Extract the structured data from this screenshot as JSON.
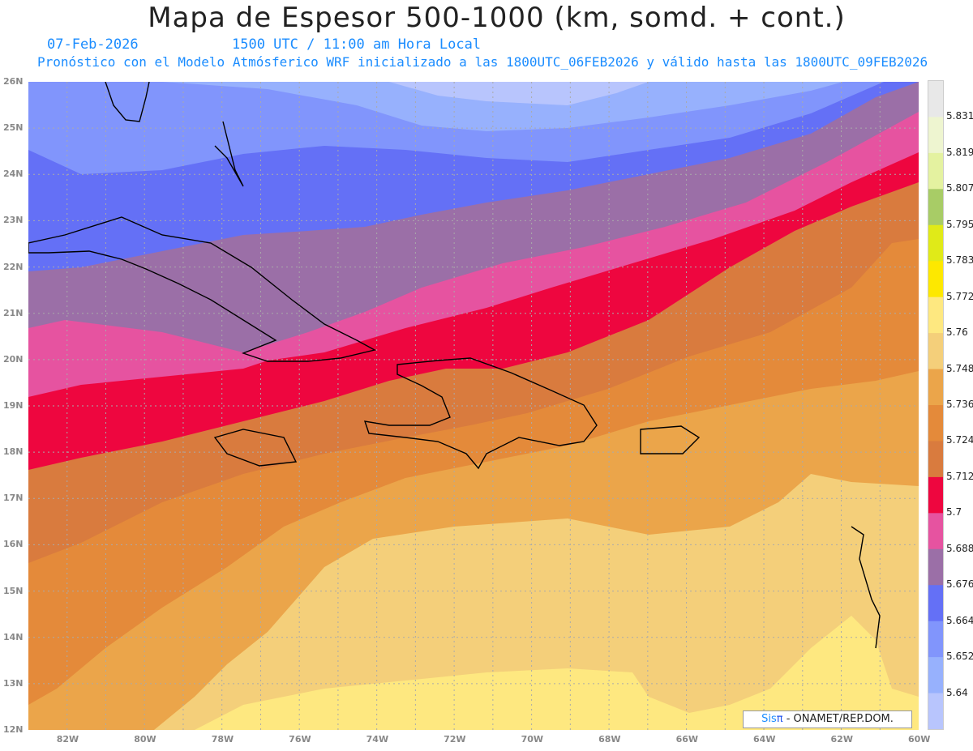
{
  "header": {
    "title": "Mapa de Espesor 500-1000 (km, somd. + cont.)",
    "date": "07-Feb-2026",
    "time": "1500 UTC / 11:00 am Hora Local",
    "subtitle": "Pronóstico con el Modelo Atmósferico WRF inicializado a las 1800UTC_06FEB2026 y válido hasta las  1800UTC_09FEB2026"
  },
  "axes": {
    "lon_labels": [
      "82W",
      "80W",
      "78W",
      "76W",
      "74W",
      "72W",
      "70W",
      "68W",
      "66W",
      "64W",
      "62W",
      "60W"
    ],
    "lat_labels": [
      "26N",
      "25N",
      "24N",
      "23N",
      "22N",
      "21N",
      "20N",
      "19N",
      "18N",
      "17N",
      "16N",
      "15N",
      "14N",
      "13N",
      "12N"
    ]
  },
  "colorbar": {
    "labels": [
      "5.831",
      "5.819",
      "5.807",
      "5.795",
      "5.783",
      "5.772",
      "5.76",
      "5.748",
      "5.736",
      "5.724",
      "5.712",
      "5.7",
      "5.688",
      "5.676",
      "5.664",
      "5.652",
      "5.64"
    ],
    "colors": [
      "#e8e8e8",
      "#eef5d0",
      "#e4f2a0",
      "#a8cc66",
      "#e0ea18",
      "#fde800",
      "#fee880",
      "#f4cf7a",
      "#eba54a",
      "#e48a3a",
      "#d97b3e",
      "#ee063f",
      "#e653a0",
      "#9b6fa7",
      "#6470f6",
      "#8195fc",
      "#97b1fd",
      "#b8c5fd"
    ]
  },
  "credit": {
    "sis": "Sis",
    "pi": "π",
    "rest": "- ONAMET/REP.DOM."
  }
}
